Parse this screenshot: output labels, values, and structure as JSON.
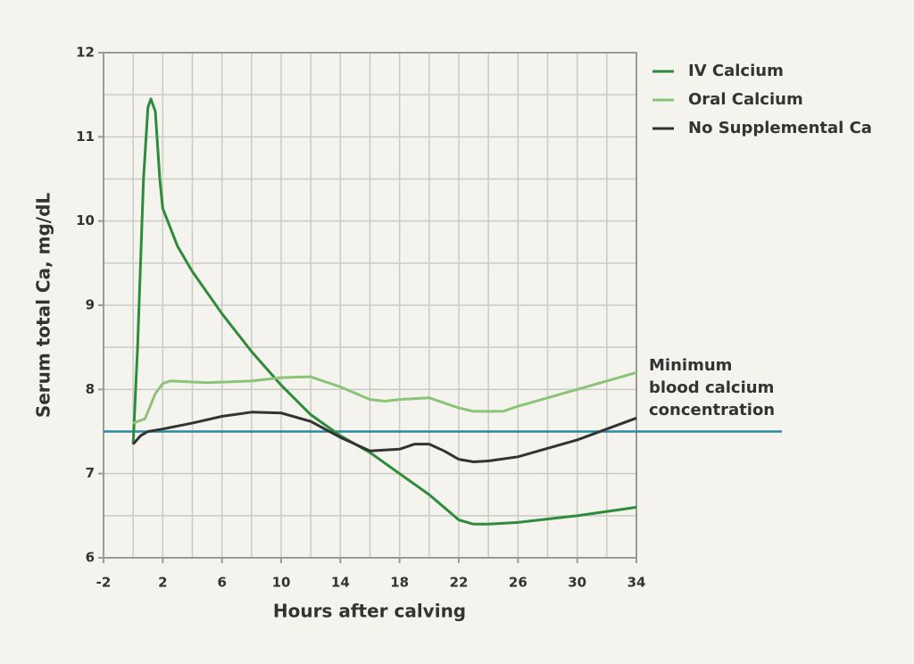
{
  "chart_data": {
    "type": "line",
    "x_label": "Hours after calving",
    "y_label": "Serum total Ca, mg/dL",
    "xlim": [
      -2,
      34
    ],
    "ylim": [
      6,
      12
    ],
    "xticks": [
      -2,
      2,
      6,
      10,
      14,
      18,
      22,
      26,
      30,
      34
    ],
    "yticks": [
      6,
      7,
      8,
      9,
      10,
      11,
      12
    ],
    "xgrid": [
      0,
      2,
      4,
      6,
      8,
      10,
      12,
      14,
      16,
      18,
      20,
      22,
      24,
      26,
      28,
      30,
      32
    ],
    "ygrid": [
      6.5,
      7,
      7.5,
      8,
      8.5,
      9,
      9.5,
      10,
      10.5,
      11,
      11.5
    ],
    "grid": true,
    "legend": "right",
    "series": [
      {
        "name": "IV Calcium",
        "color": "#2e8b3a",
        "x": [
          0,
          0.3,
          0.7,
          1,
          1.2,
          1.5,
          1.8,
          2,
          3,
          4,
          6,
          8,
          10,
          12,
          14,
          16,
          18,
          20,
          22,
          23,
          24,
          26,
          30,
          34
        ],
        "values": [
          7.35,
          8.5,
          10.5,
          11.35,
          11.45,
          11.3,
          10.5,
          10.15,
          9.7,
          9.4,
          8.9,
          8.45,
          8.05,
          7.7,
          7.45,
          7.25,
          7.0,
          6.75,
          6.45,
          6.4,
          6.4,
          6.42,
          6.5,
          6.6
        ]
      },
      {
        "name": "Oral Calcium",
        "color": "#8cc477",
        "x": [
          0,
          0.8,
          1.5,
          2,
          2.5,
          5,
          8,
          10,
          12,
          14,
          16,
          17,
          18,
          20,
          22,
          23,
          25,
          26,
          28,
          30,
          32,
          34
        ],
        "values": [
          7.6,
          7.65,
          7.95,
          8.07,
          8.1,
          8.08,
          8.1,
          8.14,
          8.15,
          8.03,
          7.88,
          7.86,
          7.88,
          7.9,
          7.78,
          7.74,
          7.74,
          7.8,
          7.9,
          8.0,
          8.1,
          8.2
        ]
      },
      {
        "name": "No Supplemental Ca",
        "color": "#333333",
        "x": [
          0,
          0.5,
          1,
          2,
          4,
          6,
          8,
          10,
          12,
          14,
          16,
          18,
          19,
          20,
          21,
          22,
          23,
          24,
          26,
          30,
          34
        ],
        "values": [
          7.35,
          7.45,
          7.5,
          7.53,
          7.6,
          7.68,
          7.73,
          7.72,
          7.62,
          7.43,
          7.27,
          7.29,
          7.35,
          7.35,
          7.27,
          7.17,
          7.14,
          7.15,
          7.2,
          7.4,
          7.66
        ]
      }
    ],
    "reference_line": {
      "value": 7.5,
      "color": "#2a8aa0",
      "label": [
        "Minimum",
        "blood calcium",
        "concentration"
      ]
    }
  }
}
